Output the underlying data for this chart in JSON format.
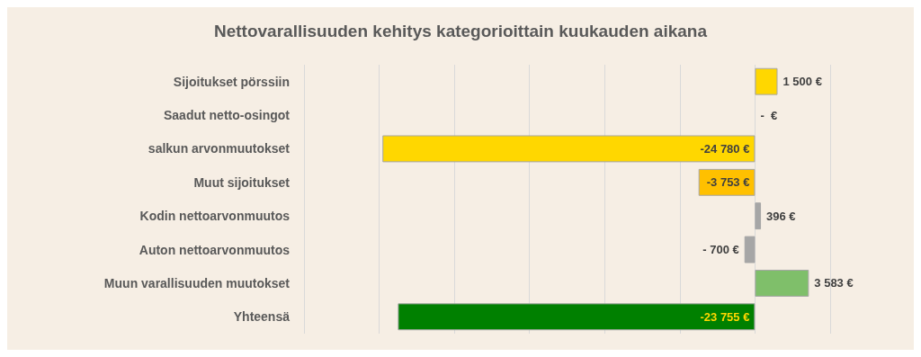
{
  "chart_data": {
    "type": "bar",
    "orientation": "horizontal",
    "title": "Nettovarallisuuden kehitys kategorioittain kuukauden aikana",
    "categories": [
      "Sijoitukset pörssiin",
      "Saadut netto-osingot",
      "salkun arvonmuutokset",
      "Muut sijoitukset",
      "Kodin nettoarvonmuutos",
      "Auton nettoarvonmuutos",
      "Muun varallisuuden muutokset",
      "Yhteensä"
    ],
    "values": [
      1500,
      0,
      -24780,
      -3753,
      396,
      -700,
      3583,
      -23755
    ],
    "colors": [
      "#ffd700",
      "#ffd700",
      "#ffd700",
      "#ffc000",
      "#a6a6a6",
      "#a6a6a6",
      "#7fbf6a",
      "#008000"
    ],
    "value_labels": [
      "1 500 €",
      "-  €",
      "-24 780 €",
      "-3 753 €",
      "396 €",
      "- 700 €",
      "3 583 €",
      "-23 755 €"
    ],
    "xlim": [
      -30000,
      5000
    ],
    "xticks": [
      {
        "value": -30000,
        "label": null
      },
      {
        "value": -25000,
        "label": null
      },
      {
        "value": -20000,
        "label": null
      },
      {
        "value": -15000,
        "label": null
      },
      {
        "value": -10000,
        "label": null
      },
      {
        "value": -5000,
        "label": null
      },
      {
        "value": 0,
        "label": null
      },
      {
        "value": 5000,
        "label": null
      }
    ],
    "tick_labels": "y",
    "grid": "x"
  }
}
